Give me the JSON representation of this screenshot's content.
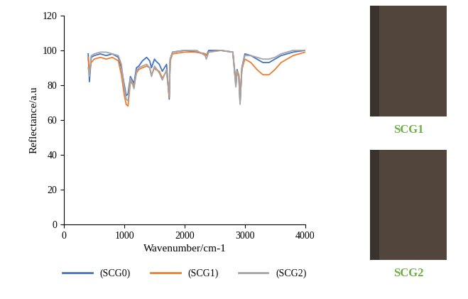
{
  "chart_data": {
    "type": "line",
    "x_label": "Wavenumber/cm-1",
    "y_label": "Reflectance/a.u",
    "x": [
      400,
      420,
      450,
      500,
      600,
      700,
      800,
      900,
      950,
      1000,
      1030,
      1060,
      1100,
      1160,
      1200,
      1240,
      1300,
      1370,
      1420,
      1450,
      1500,
      1520,
      1580,
      1630,
      1700,
      1745,
      1760,
      1800,
      2000,
      2200,
      2340,
      2360,
      2400,
      2600,
      2800,
      2850,
      2870,
      2900,
      2920,
      2950,
      3000,
      3100,
      3200,
      3300,
      3400,
      3500,
      3600,
      3800,
      4000
    ],
    "series": [
      {
        "name": "(SCG0)",
        "color": "#4472c4",
        "values": [
          98,
          82,
          96,
          97,
          98,
          97,
          98,
          96,
          90,
          80,
          74,
          75,
          85,
          81,
          90,
          91,
          94,
          96,
          94,
          90,
          95,
          94,
          92,
          88,
          92,
          72,
          95,
          99,
          100,
          99,
          98,
          97,
          100,
          100,
          99,
          80,
          89,
          85,
          70,
          90,
          98,
          97,
          95,
          93,
          93,
          95,
          97,
          99,
          100
        ]
      },
      {
        "name": "(SCG1)",
        "color": "#ed7d31",
        "values": [
          96,
          88,
          93,
          95,
          96,
          95,
          96,
          94,
          86,
          74,
          69,
          68,
          82,
          80,
          87,
          89,
          90,
          91,
          90,
          86,
          90,
          89,
          88,
          84,
          88,
          73,
          94,
          98,
          99,
          99,
          98,
          97,
          99,
          100,
          99,
          82,
          88,
          86,
          71,
          89,
          95,
          93,
          89,
          86,
          86,
          89,
          93,
          97,
          99
        ]
      },
      {
        "name": "(SCG2)",
        "color": "#a5a5a5",
        "values": [
          90,
          85,
          97,
          98,
          99,
          99,
          98,
          97,
          92,
          78,
          72,
          71,
          84,
          78,
          88,
          90,
          91,
          92,
          90,
          85,
          91,
          90,
          87,
          83,
          89,
          74,
          95,
          99,
          100,
          100,
          97,
          95,
          99,
          100,
          99,
          79,
          88,
          84,
          69,
          90,
          97,
          97,
          96,
          95,
          95,
          96,
          98,
          100,
          100
        ]
      }
    ],
    "xlim": [
      0,
      4000
    ],
    "xticks": [
      0,
      1000,
      2000,
      3000,
      4000
    ],
    "ylim": [
      0,
      120
    ],
    "yticks": [
      0,
      20,
      40,
      60,
      80,
      100,
      120
    ],
    "grid": false,
    "legend": "lower center",
    "images": [
      {
        "label": "SCG1",
        "color": "#70ad47"
      },
      {
        "label": "SCG2",
        "color": "#70ad47"
      }
    ]
  }
}
